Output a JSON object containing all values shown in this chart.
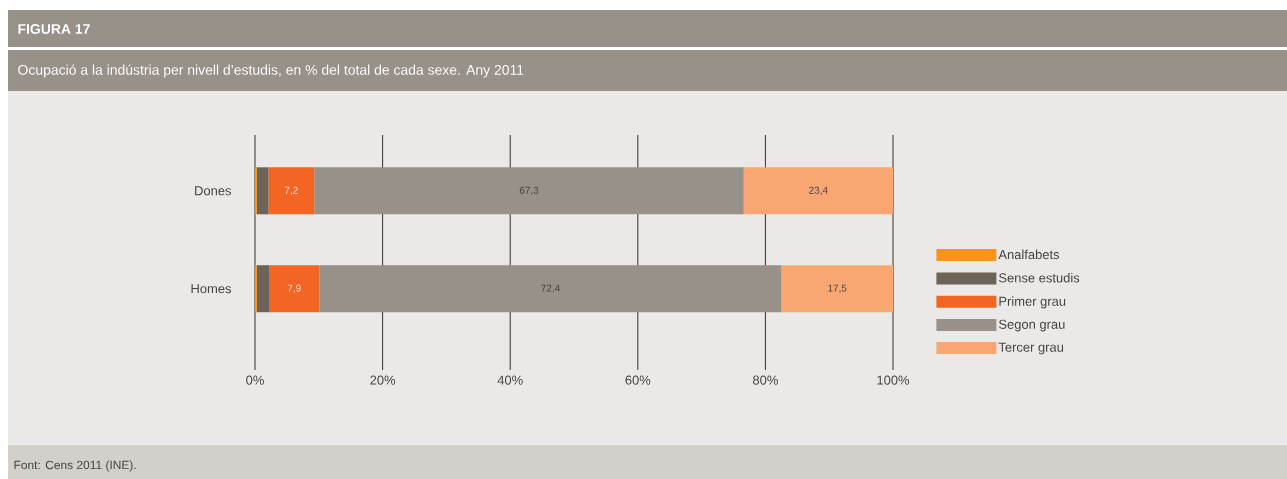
{
  "chart_data": {
    "type": "bar",
    "orientation": "horizontal",
    "stacked": true,
    "title": "FIGURA 17",
    "subtitle": "Ocupació a la indústria per nivell d’estudis, en % del total de cada sexe. Any 2011",
    "categories": [
      "Dones",
      "Homes"
    ],
    "series": [
      {
        "name": "Analfabets",
        "color": "#f7941d",
        "values": [
          0.3,
          0.3
        ]
      },
      {
        "name": "Sense estudis",
        "color": "#6e6358",
        "values": [
          1.8,
          1.9
        ]
      },
      {
        "name": "Primer grau",
        "color": "#f26522",
        "values": [
          7.2,
          7.9
        ],
        "value_labels": [
          "7,2",
          "7,9"
        ]
      },
      {
        "name": "Segon grau",
        "color": "#98918a",
        "values": [
          67.3,
          72.4
        ],
        "value_labels": [
          "67,3",
          "72,4"
        ]
      },
      {
        "name": "Tercer grau",
        "color": "#f9a673",
        "values": [
          23.4,
          17.5
        ],
        "value_labels": [
          "23,4",
          "17,5"
        ]
      }
    ],
    "xlim": [
      0,
      100
    ],
    "xticks": [
      {
        "value": 0,
        "label": "0%"
      },
      {
        "value": 20,
        "label": "20%"
      },
      {
        "value": 40,
        "label": "40%"
      },
      {
        "value": 60,
        "label": "60%"
      },
      {
        "value": 80,
        "label": "80%"
      },
      {
        "value": 100,
        "label": "100%"
      }
    ],
    "grid": "x",
    "legend": "right",
    "annotations": [
      "Font: Cens 2011 (INE)."
    ]
  }
}
